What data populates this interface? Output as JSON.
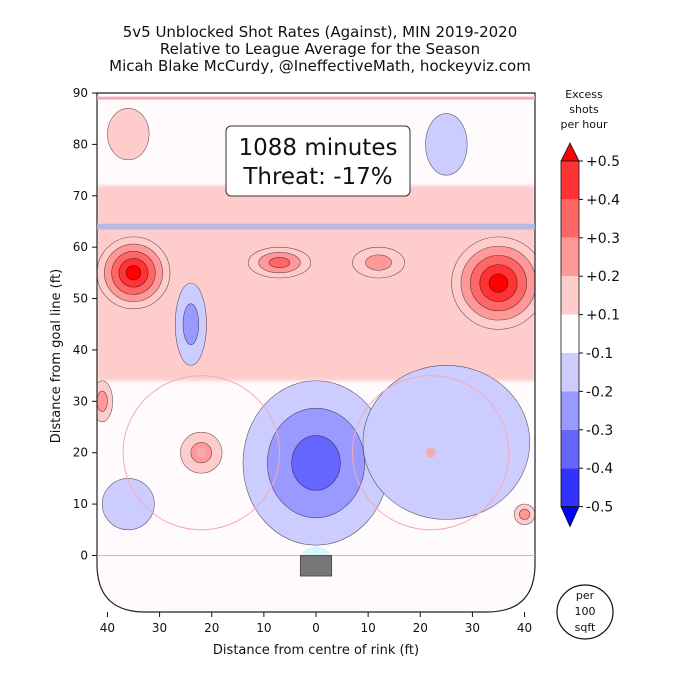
{
  "header": {
    "line1": "5v5 Unblocked Shot Rates (Against), MIN 2019-2020",
    "line2": "Relative to League Average for the Season",
    "line3": "Micah Blake McCurdy, @IneffectiveMath, hockeyviz.com"
  },
  "annotation": {
    "minutes": "1088 minutes",
    "threat": "Threat: -17%"
  },
  "colorbar": {
    "title": [
      "Excess",
      "shots",
      "per hour"
    ],
    "labels": [
      "+0.5",
      "+0.4",
      "+0.3",
      "+0.2",
      "+0.1",
      "-0.1",
      "-0.2",
      "-0.3",
      "-0.4",
      "-0.5"
    ],
    "bands": [
      "#ff0000",
      "#ff3333",
      "#ff6666",
      "#ff9999",
      "#ffcccc",
      "#ffffff",
      "#ccccff",
      "#9999ff",
      "#6666ff",
      "#3333ff",
      "#0000ff"
    ]
  },
  "unit_badge": [
    "per",
    "100",
    "sqft"
  ],
  "colors": {
    "red_strong": "#ff0000",
    "blue_strong": "#0000ff",
    "rink_line": "#f4a9b4",
    "blue_line": "#aab6e6"
  },
  "chart_data": {
    "type": "heatmap",
    "title": "5v5 Unblocked Shot Rates (Against), MIN 2019-2020",
    "subtitle": "Relative to League Average for the Season",
    "xlabel": "Distance from centre of rink (ft)",
    "ylabel": "Distance from goal line (ft)",
    "xlim": [
      -42,
      42
    ],
    "ylim": [
      -11,
      90
    ],
    "x_ticks": [
      -40,
      -30,
      -20,
      -10,
      0,
      10,
      20,
      30,
      40
    ],
    "x_tick_labels": [
      "40",
      "30",
      "20",
      "10",
      "0",
      "10",
      "20",
      "30",
      "40"
    ],
    "y_ticks": [
      0,
      10,
      20,
      30,
      40,
      50,
      60,
      70,
      80,
      90
    ],
    "y_tick_labels": [
      "0",
      "10",
      "20",
      "30",
      "40",
      "50",
      "60",
      "70",
      "80",
      "90"
    ],
    "levels": [
      -0.5,
      -0.4,
      -0.3,
      -0.2,
      -0.1,
      0.1,
      0.2,
      0.3,
      0.4,
      0.5
    ],
    "minutes": 1088,
    "threat_percent": -17,
    "regions": [
      {
        "x": -35,
        "y": 55,
        "rx": 7,
        "ry": 7,
        "level": 0.5
      },
      {
        "x": 35,
        "y": 53,
        "rx": 9,
        "ry": 9,
        "level": 0.5
      },
      {
        "x": -7,
        "y": 57,
        "rx": 6,
        "ry": 3,
        "level": 0.3
      },
      {
        "x": 12,
        "y": 57,
        "rx": 5,
        "ry": 3,
        "level": 0.2
      },
      {
        "x": -36,
        "y": 82,
        "rx": 4,
        "ry": 5,
        "level": 0.1
      },
      {
        "x": -22,
        "y": 20,
        "rx": 4,
        "ry": 4,
        "level": 0.2
      },
      {
        "x": -41,
        "y": 30,
        "rx": 2,
        "ry": 4,
        "level": 0.2
      },
      {
        "x": 40,
        "y": 8,
        "rx": 2,
        "ry": 2,
        "level": 0.2
      },
      {
        "x": -2,
        "y": 17,
        "rx": 7,
        "ry": 12,
        "level": -0.5
      },
      {
        "x": 0,
        "y": 18,
        "rx": 14,
        "ry": 16,
        "level": -0.3
      },
      {
        "x": -24,
        "y": 45,
        "rx": 3,
        "ry": 8,
        "level": -0.2
      },
      {
        "x": 25,
        "y": 80,
        "rx": 4,
        "ry": 6,
        "level": -0.1
      },
      {
        "x": 25,
        "y": 22,
        "rx": 16,
        "ry": 15,
        "level": -0.1
      },
      {
        "x": -36,
        "y": 10,
        "rx": 5,
        "ry": 5,
        "level": -0.1
      }
    ]
  }
}
